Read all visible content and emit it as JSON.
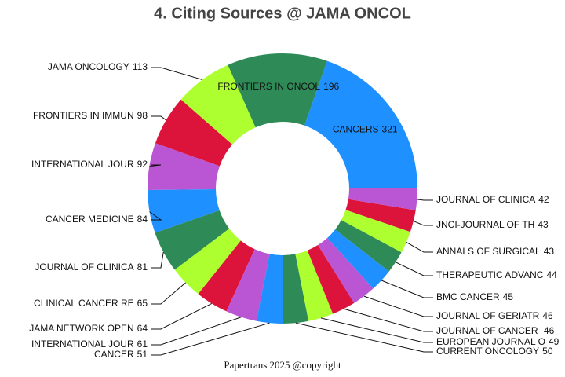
{
  "chart_data": {
    "type": "donut",
    "title": "4. Citing Sources @ JAMA ONCOL",
    "footer": "Papertrans 2025 @copyright",
    "categories": [
      "CANCERS",
      "FRONTIERS IN ONCOL",
      "JAMA ONCOLOGY",
      "FRONTIERS IN IMMUN",
      "INTERNATIONAL JOUR",
      "CANCER MEDICINE",
      "JOURNAL OF CLINICA",
      "CLINICAL CANCER RE",
      "JAMA NETWORK OPEN",
      "INTERNATIONAL JOUR",
      "CANCER",
      "CURRENT ONCOLOGY",
      "EUROPEAN JOURNAL O",
      "JOURNAL OF CANCER ",
      "JOURNAL OF GERIATR",
      "BMC CANCER",
      "THERAPEUTIC ADVANC",
      "ANNALS OF SURGICAL",
      "JNCI-JOURNAL OF TH",
      "JOURNAL OF CLINICA"
    ],
    "values": [
      321,
      196,
      113,
      98,
      92,
      84,
      81,
      65,
      64,
      61,
      51,
      50,
      49,
      46,
      46,
      45,
      44,
      43,
      43,
      42
    ],
    "colors": [
      "#1e90ff",
      "#2e8b57",
      "#adff2f",
      "#dc143c",
      "#ba55d3",
      "#1e90ff",
      "#2e8b57",
      "#adff2f",
      "#dc143c",
      "#ba55d3",
      "#1e90ff",
      "#2e8b57",
      "#adff2f",
      "#dc143c",
      "#ba55d3",
      "#1e90ff",
      "#2e8b57",
      "#adff2f",
      "#dc143c",
      "#ba55d3"
    ]
  }
}
